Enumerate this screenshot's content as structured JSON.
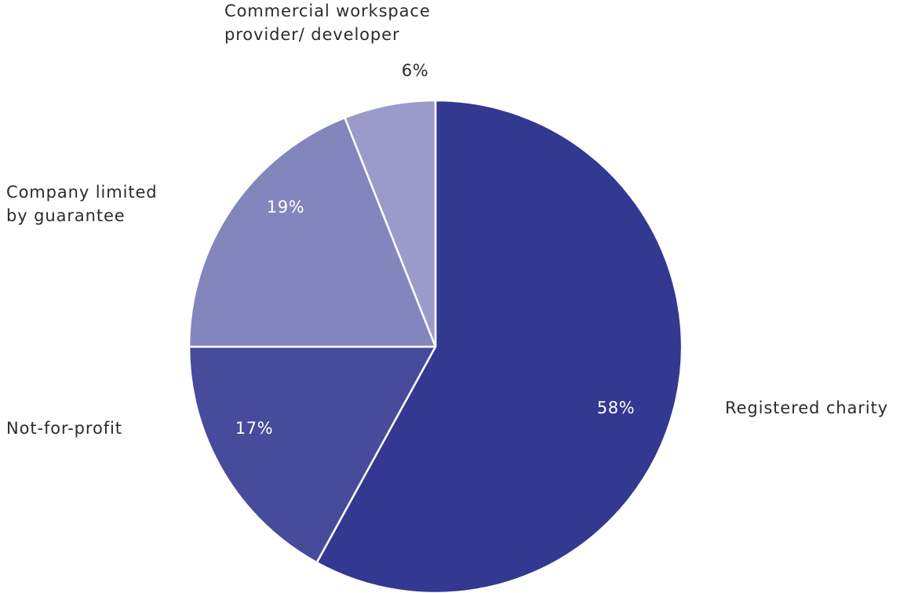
{
  "chart_data": {
    "type": "pie",
    "start": "12 o'clock",
    "direction": "clockwise",
    "slices": [
      {
        "label": [
          "Registered charity"
        ],
        "value": 58,
        "value_label": "58%",
        "color": "#333891",
        "text_color": "#ffffff"
      },
      {
        "label": [
          "Not-for-profit"
        ],
        "value": 17,
        "value_label": "17%",
        "color": "#464b9b",
        "text_color": "#ffffff"
      },
      {
        "label": [
          "Company limited",
          "by guarantee"
        ],
        "value": 19,
        "value_label": "19%",
        "color": "#8386bc",
        "text_color": "#ffffff"
      },
      {
        "label": [
          "Commercial workspace",
          "provider/ developer"
        ],
        "value": 6,
        "value_label": "6%",
        "color": "#9a9bca",
        "text_color": "#2b2b2b"
      }
    ]
  }
}
